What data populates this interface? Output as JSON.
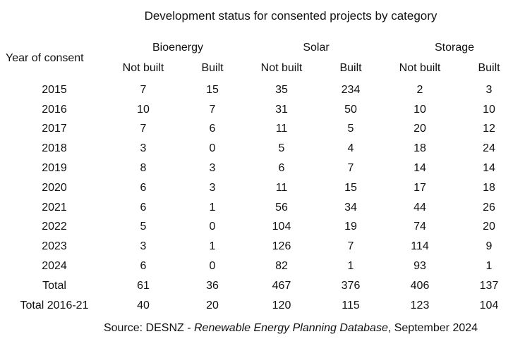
{
  "title": "Development status for consented projects by category",
  "table": {
    "row_header": "Year of consent",
    "groups": [
      {
        "label": "Bioenergy"
      },
      {
        "label": "Solar"
      },
      {
        "label": "Storage"
      }
    ],
    "subheaders": [
      "Not built",
      "Built",
      "Not built",
      "Built",
      "Not built",
      "Built"
    ],
    "rows": [
      {
        "label": "2015",
        "values": [
          "7",
          "15",
          "35",
          "234",
          "2",
          "3"
        ]
      },
      {
        "label": "2016",
        "values": [
          "10",
          "7",
          "31",
          "50",
          "10",
          "10"
        ]
      },
      {
        "label": "2017",
        "values": [
          "7",
          "6",
          "11",
          "5",
          "20",
          "12"
        ]
      },
      {
        "label": "2018",
        "values": [
          "3",
          "0",
          "5",
          "4",
          "18",
          "24"
        ]
      },
      {
        "label": "2019",
        "values": [
          "8",
          "3",
          "6",
          "7",
          "14",
          "14"
        ]
      },
      {
        "label": "2020",
        "values": [
          "6",
          "3",
          "11",
          "15",
          "17",
          "18"
        ]
      },
      {
        "label": "2021",
        "values": [
          "6",
          "1",
          "56",
          "34",
          "44",
          "26"
        ]
      },
      {
        "label": "2022",
        "values": [
          "5",
          "0",
          "104",
          "19",
          "74",
          "20"
        ]
      },
      {
        "label": "2023",
        "values": [
          "3",
          "1",
          "126",
          "7",
          "114",
          "9"
        ]
      },
      {
        "label": "2024",
        "values": [
          "6",
          "0",
          "82",
          "1",
          "93",
          "1"
        ]
      },
      {
        "label": "Total",
        "values": [
          "61",
          "36",
          "467",
          "376",
          "406",
          "137"
        ]
      },
      {
        "label": "Total 2016-21",
        "values": [
          "40",
          "20",
          "120",
          "115",
          "123",
          "104"
        ]
      }
    ]
  },
  "source": {
    "prefix": "Source: DESNZ - ",
    "italic": "Renewable Energy Planning Database",
    "suffix": ", September 2024"
  },
  "colors": {
    "background": "#ffffff",
    "text": "#111111"
  },
  "chart_data": {
    "type": "table",
    "title": "Development status for consented projects by category",
    "categories": [
      "2015",
      "2016",
      "2017",
      "2018",
      "2019",
      "2020",
      "2021",
      "2022",
      "2023",
      "2024",
      "Total",
      "Total 2016-21"
    ],
    "column_groups": [
      "Bioenergy",
      "Solar",
      "Storage"
    ],
    "series": [
      {
        "name": "Bioenergy Not built",
        "values": [
          7,
          10,
          7,
          3,
          8,
          6,
          6,
          5,
          3,
          6,
          61,
          40
        ]
      },
      {
        "name": "Bioenergy Built",
        "values": [
          15,
          7,
          6,
          0,
          3,
          3,
          1,
          0,
          1,
          0,
          36,
          20
        ]
      },
      {
        "name": "Solar Not built",
        "values": [
          35,
          31,
          11,
          5,
          6,
          11,
          56,
          104,
          126,
          82,
          467,
          120
        ]
      },
      {
        "name": "Solar Built",
        "values": [
          234,
          50,
          5,
          4,
          7,
          15,
          34,
          19,
          7,
          1,
          376,
          115
        ]
      },
      {
        "name": "Storage Not built",
        "values": [
          2,
          10,
          20,
          18,
          14,
          17,
          44,
          74,
          114,
          93,
          406,
          123
        ]
      },
      {
        "name": "Storage Built",
        "values": [
          3,
          10,
          12,
          24,
          14,
          18,
          26,
          20,
          9,
          1,
          137,
          104
        ]
      }
    ],
    "row_axis_label": "Year of consent",
    "source": "Source: DESNZ - Renewable Energy Planning Database, September 2024"
  }
}
